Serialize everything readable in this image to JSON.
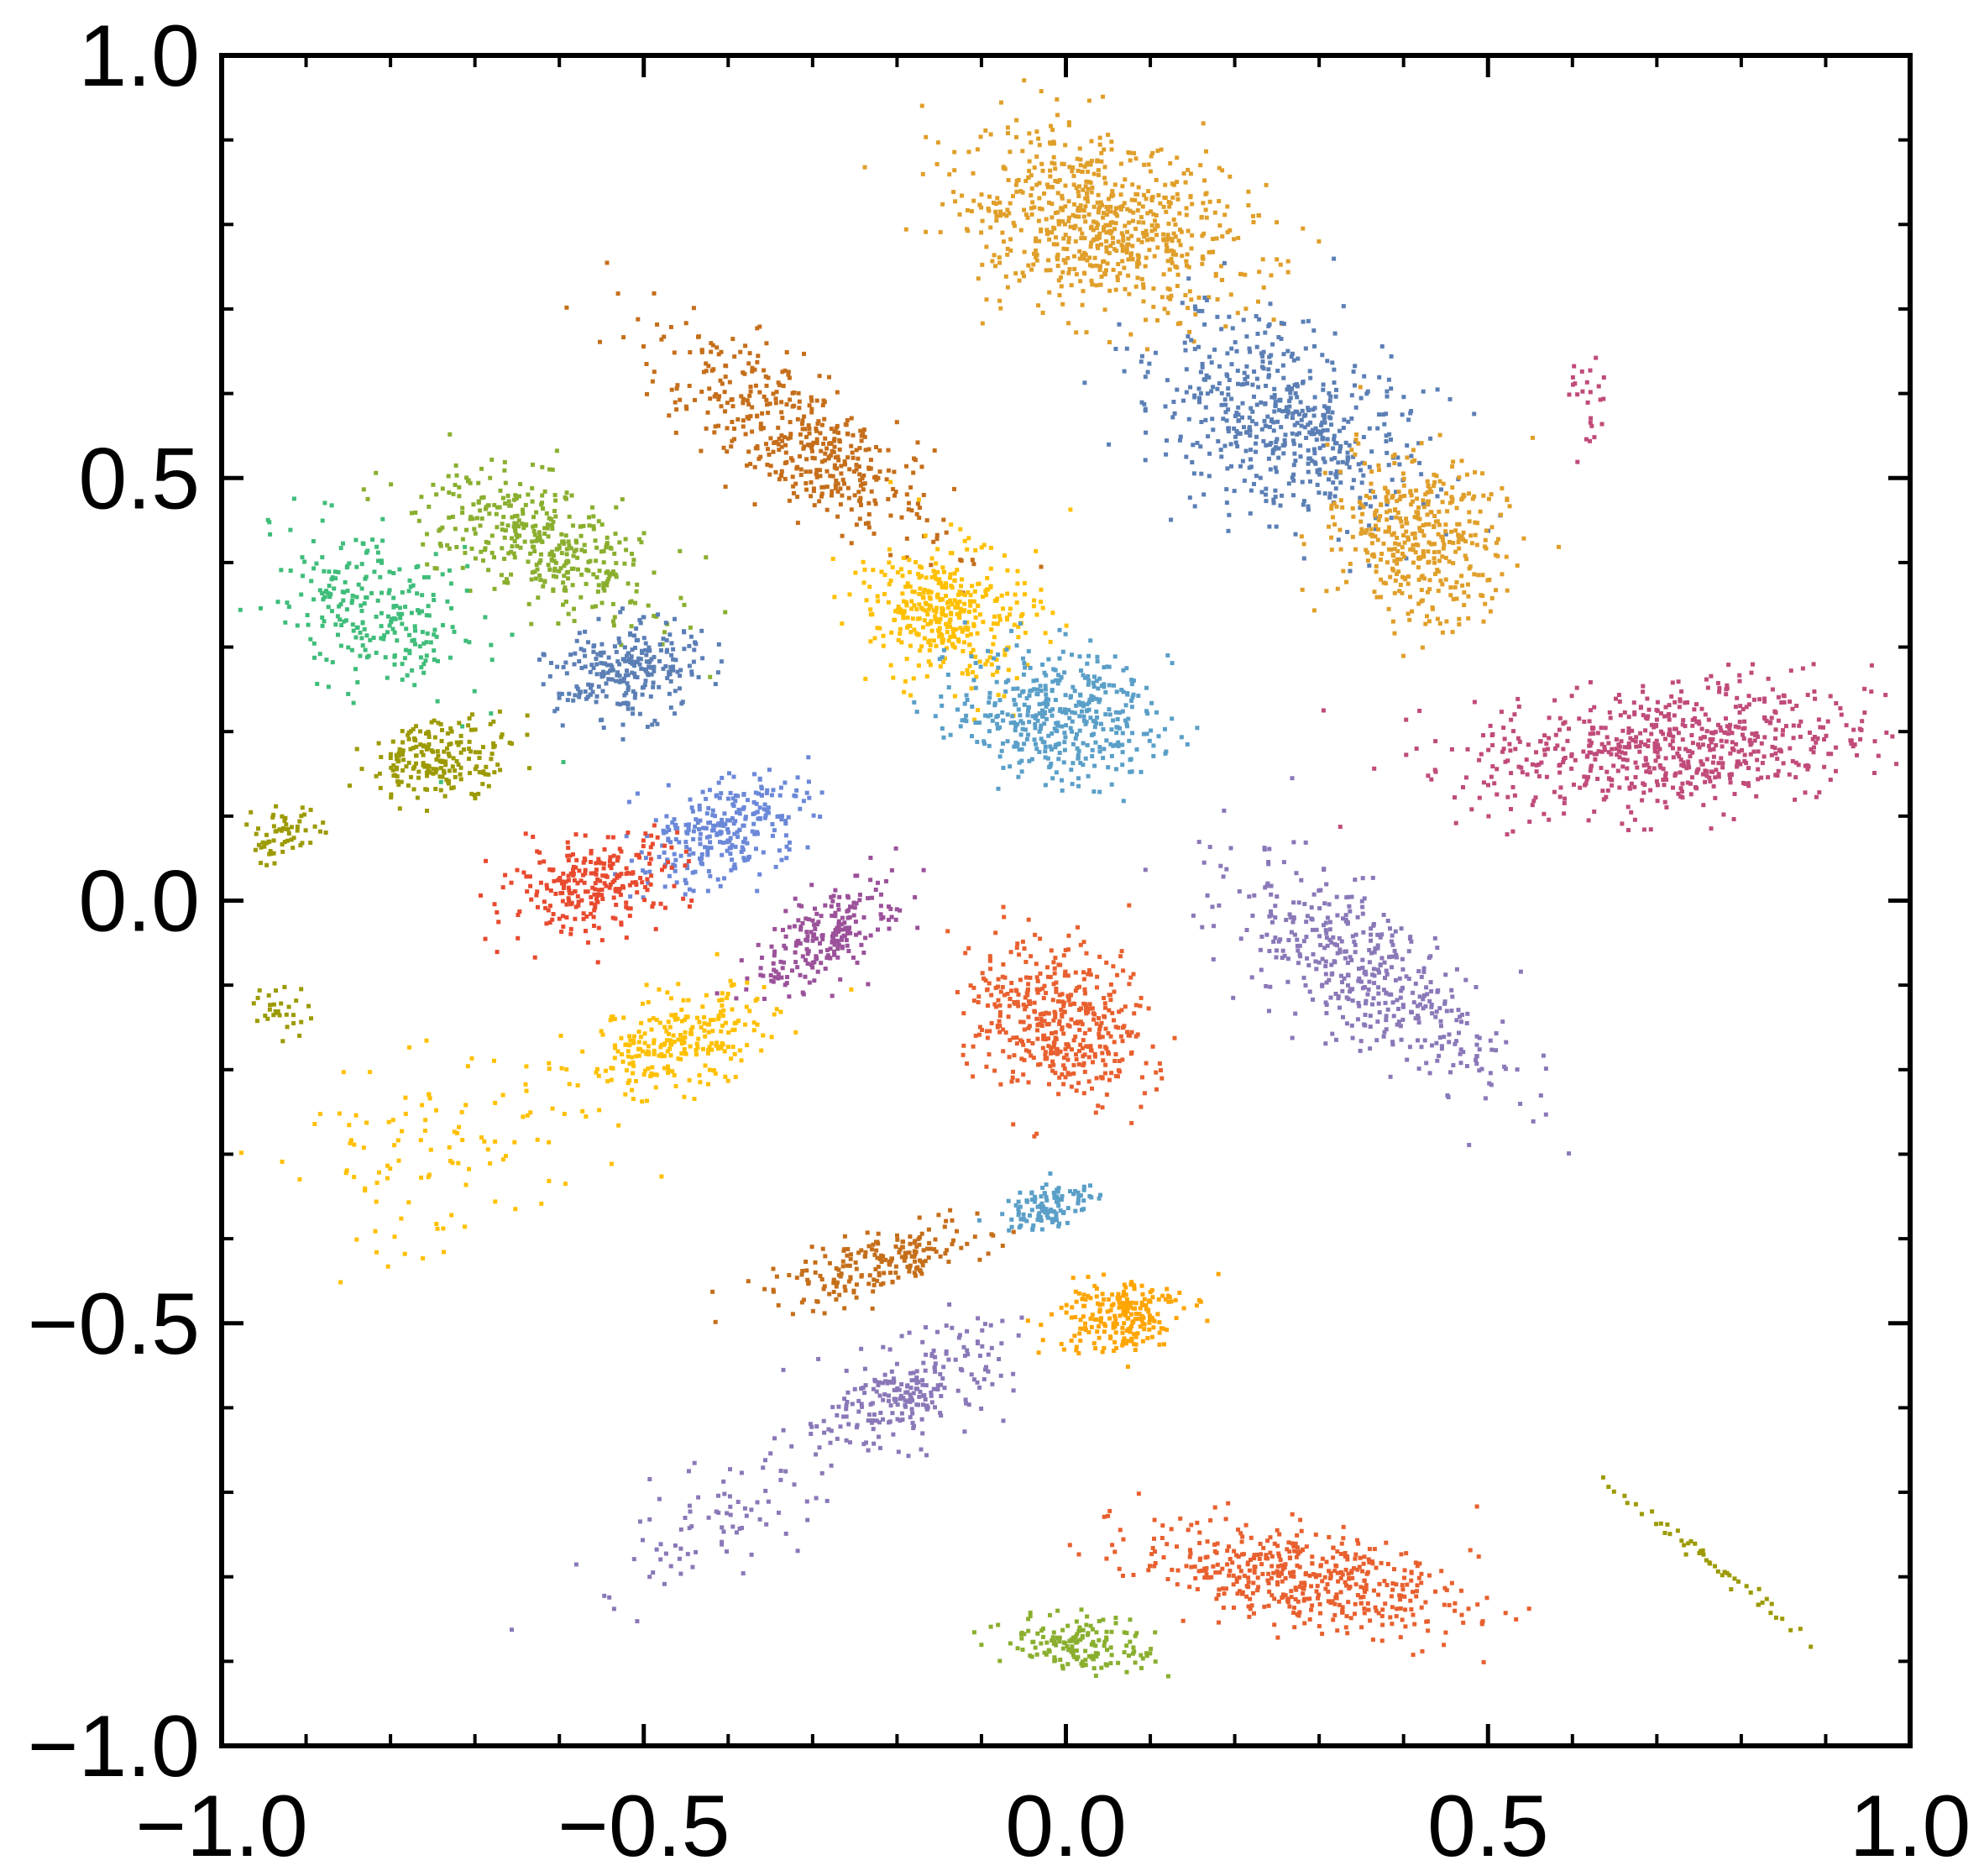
{
  "chart_data": {
    "type": "scatter",
    "title": "",
    "xlabel": "",
    "ylabel": "",
    "xlim": [
      -1.0,
      1.0
    ],
    "ylim": [
      -1.0,
      1.0
    ],
    "grid": false,
    "legend": "none",
    "x_ticks": [
      -1.0,
      -0.5,
      0.0,
      0.5,
      1.0
    ],
    "y_ticks": [
      -1.0,
      -0.5,
      0.0,
      0.5,
      1.0
    ],
    "x_tick_labels": [
      "−1.0",
      "−0.5",
      "0.0",
      "0.5",
      "1.0"
    ],
    "y_tick_labels": [
      "−1.0",
      "−0.5",
      "0.0",
      "0.5",
      "1.0"
    ],
    "clusters": [
      {
        "color": "#E09F2A",
        "center": [
          0.04,
          0.8
        ],
        "spread": [
          0.16,
          0.09
        ],
        "tilt": -15,
        "count": 700
      },
      {
        "color": "#5B7FB5",
        "center": [
          0.26,
          0.57
        ],
        "spread": [
          0.1,
          0.15
        ],
        "tilt": 65,
        "count": 550
      },
      {
        "color": "#E09F2A",
        "center": [
          0.42,
          0.43
        ],
        "spread": [
          0.09,
          0.1
        ],
        "tilt": 40,
        "count": 400
      },
      {
        "color": "#C56E1A",
        "center": [
          -0.32,
          0.55
        ],
        "spread": [
          0.18,
          0.06
        ],
        "tilt": -35,
        "count": 450
      },
      {
        "color": "#FFC000",
        "center": [
          -0.14,
          0.34
        ],
        "spread": [
          0.09,
          0.07
        ],
        "tilt": -20,
        "count": 380
      },
      {
        "color": "#5A9FC8",
        "center": [
          -0.01,
          0.22
        ],
        "spread": [
          0.11,
          0.07
        ],
        "tilt": -10,
        "count": 420
      },
      {
        "color": "#C04B7A",
        "center": [
          0.72,
          0.18
        ],
        "spread": [
          0.22,
          0.07
        ],
        "tilt": 5,
        "count": 650
      },
      {
        "color": "#8A78B8",
        "center": [
          0.35,
          -0.08
        ],
        "spread": [
          0.18,
          0.07
        ],
        "tilt": -35,
        "count": 450
      },
      {
        "color": "#E8602F",
        "center": [
          -0.01,
          -0.14
        ],
        "spread": [
          0.1,
          0.08
        ],
        "tilt": -25,
        "count": 450
      },
      {
        "color": "#8AAF2F",
        "center": [
          -0.62,
          0.42
        ],
        "spread": [
          0.14,
          0.06
        ],
        "tilt": -25,
        "count": 380
      },
      {
        "color": "#3FBD7A",
        "center": [
          -0.82,
          0.34
        ],
        "spread": [
          0.12,
          0.08
        ],
        "tilt": -30,
        "count": 260
      },
      {
        "color": "#5B7FB5",
        "center": [
          -0.52,
          0.27
        ],
        "spread": [
          0.08,
          0.05
        ],
        "tilt": 10,
        "count": 260
      },
      {
        "color": "#9C9A00",
        "center": [
          -0.74,
          0.17
        ],
        "spread": [
          0.08,
          0.04
        ],
        "tilt": 10,
        "count": 200
      },
      {
        "color": "#9C9A00",
        "center": [
          -0.93,
          0.08
        ],
        "spread": [
          0.04,
          0.03
        ],
        "tilt": 30,
        "count": 60
      },
      {
        "color": "#6B88D8",
        "center": [
          -0.41,
          0.08
        ],
        "spread": [
          0.1,
          0.05
        ],
        "tilt": 25,
        "count": 280
      },
      {
        "color": "#E84A2F",
        "center": [
          -0.56,
          0.02
        ],
        "spread": [
          0.1,
          0.05
        ],
        "tilt": 15,
        "count": 260
      },
      {
        "color": "#9B519A",
        "center": [
          -0.28,
          -0.04
        ],
        "spread": [
          0.09,
          0.04
        ],
        "tilt": 35,
        "count": 220
      },
      {
        "color": "#FFC000",
        "center": [
          -0.46,
          -0.17
        ],
        "spread": [
          0.11,
          0.05
        ],
        "tilt": 15,
        "count": 260
      },
      {
        "color": "#FFC000",
        "center": [
          -0.74,
          -0.3
        ],
        "spread": [
          0.18,
          0.1
        ],
        "tilt": 20,
        "count": 110
      },
      {
        "color": "#9C9A00",
        "center": [
          -0.93,
          -0.13
        ],
        "spread": [
          0.03,
          0.03
        ],
        "tilt": 0,
        "count": 30
      },
      {
        "color": "#5A9FC8",
        "center": [
          -0.02,
          -0.36
        ],
        "spread": [
          0.05,
          0.025
        ],
        "tilt": 15,
        "count": 110
      },
      {
        "color": "#C56E1A",
        "center": [
          -0.22,
          -0.43
        ],
        "spread": [
          0.12,
          0.03
        ],
        "tilt": 15,
        "count": 200
      },
      {
        "color": "#FFA500",
        "center": [
          0.06,
          -0.49
        ],
        "spread": [
          0.07,
          0.04
        ],
        "tilt": 10,
        "count": 220
      },
      {
        "color": "#8A78B8",
        "center": [
          -0.18,
          -0.58
        ],
        "spread": [
          0.1,
          0.05
        ],
        "tilt": 25,
        "count": 240
      },
      {
        "color": "#8A78B8",
        "center": [
          -0.42,
          -0.74
        ],
        "spread": [
          0.16,
          0.06
        ],
        "tilt": 30,
        "count": 90
      },
      {
        "color": "#E8602F",
        "center": [
          0.28,
          -0.8
        ],
        "spread": [
          0.18,
          0.05
        ],
        "tilt": -10,
        "count": 480
      },
      {
        "color": "#8AAF2F",
        "center": [
          0.02,
          -0.88
        ],
        "spread": [
          0.08,
          0.03
        ],
        "tilt": -5,
        "count": 160
      },
      {
        "color": "#9C9A00",
        "center": [
          0.76,
          -0.78
        ],
        "spread": [
          0.15,
          0.008
        ],
        "tilt": -38,
        "count": 50
      },
      {
        "color": "#C04B7A",
        "center": [
          0.62,
          0.58
        ],
        "spread": [
          0.02,
          0.06
        ],
        "tilt": 0,
        "count": 25
      }
    ]
  }
}
